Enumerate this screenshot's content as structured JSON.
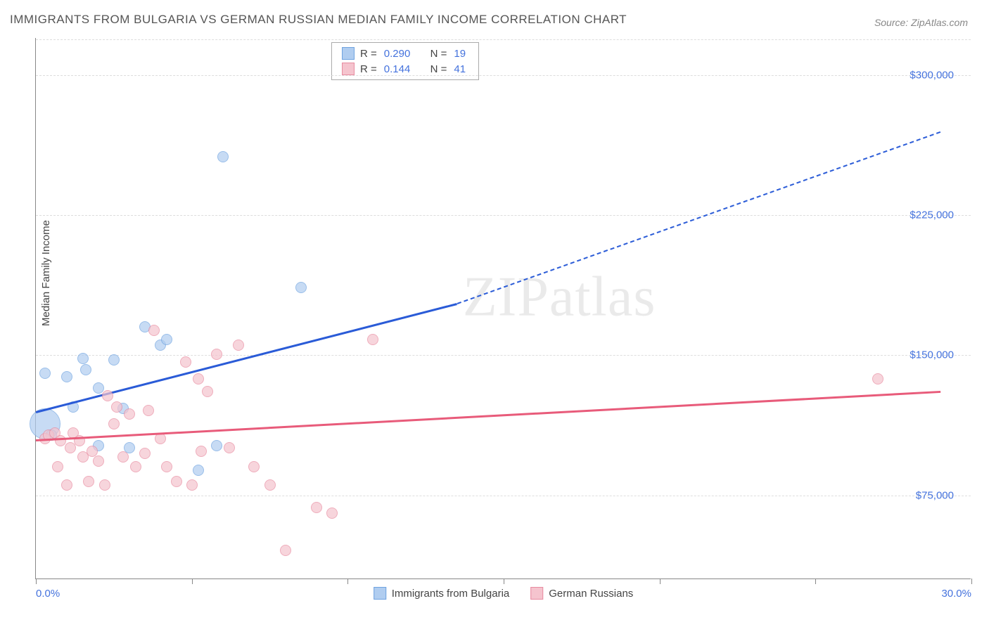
{
  "title": "IMMIGRANTS FROM BULGARIA VS GERMAN RUSSIAN MEDIAN FAMILY INCOME CORRELATION CHART",
  "source": "Source: ZipAtlas.com",
  "ylabel": "Median Family Income",
  "watermark_zip": "ZIP",
  "watermark_atlas": "atlas",
  "chart": {
    "type": "scatter",
    "xlim": [
      0,
      30
    ],
    "ylim": [
      30000,
      320000
    ],
    "xticks": [
      0,
      5,
      10,
      15,
      20,
      25,
      30
    ],
    "xtick_labels": {
      "0": "0.0%",
      "30": "30.0%"
    },
    "yticks": [
      75000,
      150000,
      225000,
      300000
    ],
    "ytick_labels": [
      "$75,000",
      "$150,000",
      "$225,000",
      "$300,000"
    ],
    "grid_color": "#dddddd",
    "axis_color": "#888888",
    "background_color": "#ffffff",
    "tick_label_color": "#4472dd",
    "axis_label_color": "#444444"
  },
  "series": [
    {
      "name": "Immigrants from Bulgaria",
      "color_fill": "#b0cdf0",
      "color_stroke": "#6fa3e0",
      "trend_color": "#2a5bd7",
      "r": "0.290",
      "n": "19",
      "default_radius": 8,
      "points": [
        {
          "x": 0.3,
          "y": 113000,
          "r": 22
        },
        {
          "x": 0.3,
          "y": 140000
        },
        {
          "x": 0.5,
          "y": 107000
        },
        {
          "x": 1.0,
          "y": 138000
        },
        {
          "x": 1.2,
          "y": 122000
        },
        {
          "x": 1.5,
          "y": 148000
        },
        {
          "x": 1.6,
          "y": 142000
        },
        {
          "x": 2.0,
          "y": 132000
        },
        {
          "x": 2.0,
          "y": 101000
        },
        {
          "x": 2.5,
          "y": 147000
        },
        {
          "x": 2.8,
          "y": 121000
        },
        {
          "x": 3.0,
          "y": 100000
        },
        {
          "x": 3.5,
          "y": 165000
        },
        {
          "x": 4.0,
          "y": 155000
        },
        {
          "x": 4.2,
          "y": 158000
        },
        {
          "x": 5.2,
          "y": 88000
        },
        {
          "x": 5.8,
          "y": 101000
        },
        {
          "x": 6.0,
          "y": 256000
        },
        {
          "x": 8.5,
          "y": 186000
        }
      ],
      "trend": {
        "x1": 0,
        "y1": 120000,
        "x2": 13.5,
        "y2": 178000,
        "x2_ext": 29,
        "y2_ext": 270000
      }
    },
    {
      "name": "German Russians",
      "color_fill": "#f5c4ce",
      "color_stroke": "#e88ba0",
      "trend_color": "#e85b7a",
      "r": "0.144",
      "n": "41",
      "default_radius": 8,
      "points": [
        {
          "x": 0.3,
          "y": 105000
        },
        {
          "x": 0.4,
          "y": 107000
        },
        {
          "x": 0.6,
          "y": 108000
        },
        {
          "x": 0.7,
          "y": 90000
        },
        {
          "x": 0.8,
          "y": 104000
        },
        {
          "x": 1.0,
          "y": 80000
        },
        {
          "x": 1.1,
          "y": 100000
        },
        {
          "x": 1.2,
          "y": 108000
        },
        {
          "x": 1.4,
          "y": 104000
        },
        {
          "x": 1.5,
          "y": 95000
        },
        {
          "x": 1.7,
          "y": 82000
        },
        {
          "x": 1.8,
          "y": 98000
        },
        {
          "x": 2.0,
          "y": 93000
        },
        {
          "x": 2.2,
          "y": 80000
        },
        {
          "x": 2.3,
          "y": 128000
        },
        {
          "x": 2.5,
          "y": 113000
        },
        {
          "x": 2.6,
          "y": 122000
        },
        {
          "x": 2.8,
          "y": 95000
        },
        {
          "x": 3.0,
          "y": 118000
        },
        {
          "x": 3.2,
          "y": 90000
        },
        {
          "x": 3.5,
          "y": 97000
        },
        {
          "x": 3.6,
          "y": 120000
        },
        {
          "x": 3.8,
          "y": 163000
        },
        {
          "x": 4.0,
          "y": 105000
        },
        {
          "x": 4.2,
          "y": 90000
        },
        {
          "x": 4.5,
          "y": 82000
        },
        {
          "x": 4.8,
          "y": 146000
        },
        {
          "x": 5.0,
          "y": 80000
        },
        {
          "x": 5.2,
          "y": 137000
        },
        {
          "x": 5.3,
          "y": 98000
        },
        {
          "x": 5.5,
          "y": 130000
        },
        {
          "x": 5.8,
          "y": 150000
        },
        {
          "x": 6.2,
          "y": 100000
        },
        {
          "x": 6.5,
          "y": 155000
        },
        {
          "x": 7.0,
          "y": 90000
        },
        {
          "x": 7.5,
          "y": 80000
        },
        {
          "x": 8.0,
          "y": 45000
        },
        {
          "x": 9.0,
          "y": 68000
        },
        {
          "x": 9.5,
          "y": 65000
        },
        {
          "x": 10.8,
          "y": 158000
        },
        {
          "x": 27.0,
          "y": 137000
        }
      ],
      "trend": {
        "x1": 0,
        "y1": 105000,
        "x2": 29,
        "y2": 131000
      }
    }
  ],
  "legend_labels": {
    "r_prefix": "R =",
    "n_prefix": "N ="
  }
}
